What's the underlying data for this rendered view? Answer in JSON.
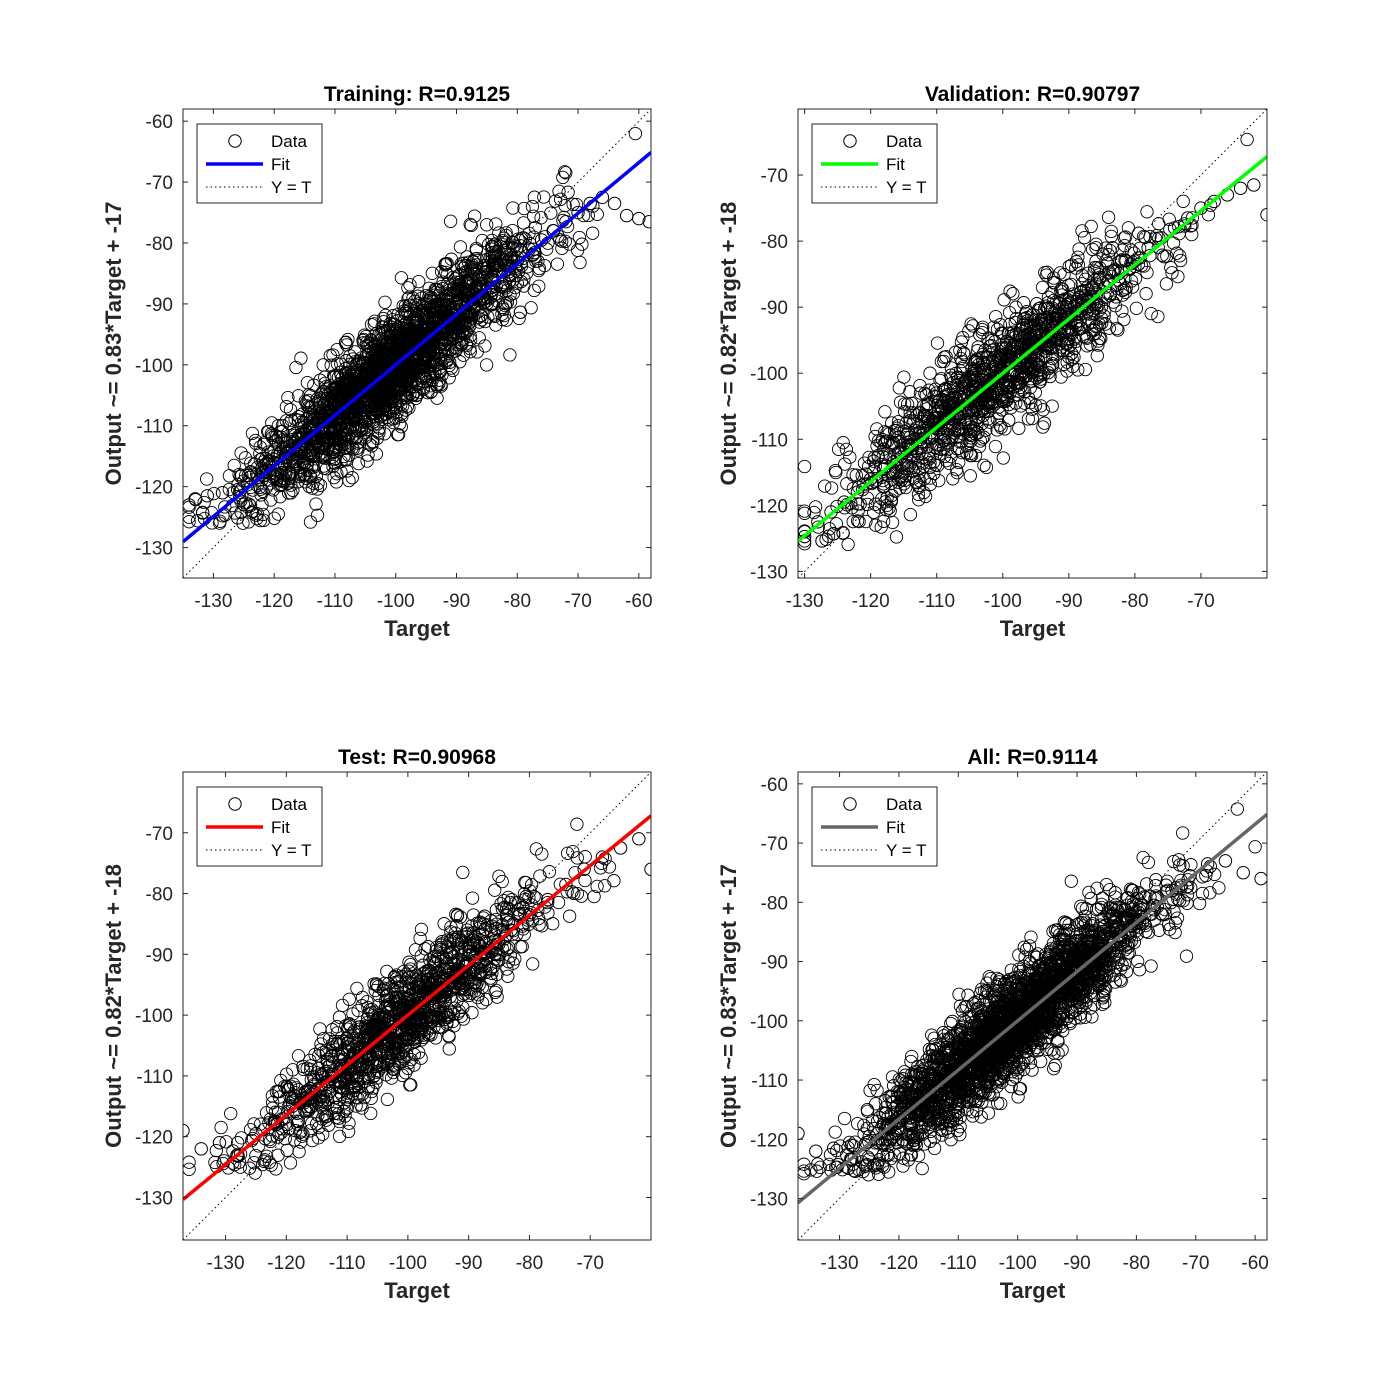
{
  "chart_data": [
    {
      "type": "scatter",
      "title": "Training: R=0.9125",
      "xlabel": "Target",
      "ylabel": "Output ~= 0.83*Target + -17",
      "xlim": [
        -135,
        -58
      ],
      "ylim": [
        -135,
        -58
      ],
      "xticks": [
        -130,
        -120,
        -110,
        -100,
        -90,
        -80,
        -70,
        -60
      ],
      "yticks": [
        -130,
        -120,
        -110,
        -100,
        -90,
        -80,
        -70,
        -60
      ],
      "grid": false,
      "legend_position": "top-left",
      "legend": [
        "Data",
        "Fit",
        "Y = T"
      ],
      "fit_color": "#0000ff",
      "fit": {
        "slope": 0.83,
        "intercept": -17
      },
      "series": [
        {
          "name": "Data",
          "kind": "marker-o",
          "color": "#000000",
          "x": [
            -134.0,
            -133.0,
            -131.0,
            -128.5,
            -126.0,
            -124.0,
            -122.0,
            -120.0,
            -118.0,
            -116.0,
            -114.0,
            -112.0,
            -110.0,
            -108.0,
            -106.0,
            -104.0,
            -102.0,
            -100.0,
            -98.0,
            -96.0,
            -94.0,
            -92.0,
            -90.0,
            -88.0,
            -86.0,
            -84.0,
            -82.0,
            -80.0,
            -78.0,
            -76.0,
            -74.0,
            -72.0,
            -70.0,
            -68.0,
            -66.0,
            -64.0,
            -62.0,
            -60.0,
            -58.3
          ],
          "y": [
            -123.0,
            -122.0,
            -121.5,
            -121.0,
            -120.5,
            -118.5,
            -117.0,
            -115.5,
            -113.5,
            -112.0,
            -110.0,
            -108.5,
            -107.0,
            -105.5,
            -104.0,
            -102.0,
            -100.5,
            -99.0,
            -97.0,
            -95.5,
            -94.0,
            -92.0,
            -90.5,
            -89.0,
            -87.5,
            -86.0,
            -84.5,
            -83.0,
            -81.0,
            -79.5,
            -78.0,
            -76.5,
            -75.0,
            -73.5,
            -72.5,
            -73.5,
            -75.5,
            -76.0,
            -76.5
          ]
        },
        {
          "name": "Fit",
          "kind": "line",
          "x": [
            -135,
            -58
          ],
          "y": [
            -129.05,
            -65.14
          ]
        },
        {
          "name": "Y = T",
          "kind": "dotted-line",
          "x": [
            -135,
            -58
          ],
          "y": [
            -135,
            -58
          ]
        }
      ]
    },
    {
      "type": "scatter",
      "title": "Validation: R=0.90797",
      "xlabel": "Target",
      "ylabel": "Output ~= 0.82*Target + -18",
      "xlim": [
        -131,
        -60
      ],
      "ylim": [
        -131,
        -60
      ],
      "xticks": [
        -130,
        -120,
        -110,
        -100,
        -90,
        -80,
        -70
      ],
      "yticks": [
        -130,
        -120,
        -110,
        -100,
        -90,
        -80,
        -70
      ],
      "grid": false,
      "legend_position": "top-left",
      "legend": [
        "Data",
        "Fit",
        "Y = T"
      ],
      "fit_color": "#00ff00",
      "fit": {
        "slope": 0.82,
        "intercept": -18
      },
      "series": [
        {
          "name": "Data",
          "kind": "marker-o",
          "color": "#000000",
          "x": [
            -130.0,
            -128.0,
            -126.0,
            -124.0,
            -122.0,
            -120.0,
            -118.0,
            -116.0,
            -114.0,
            -112.0,
            -110.0,
            -108.0,
            -106.0,
            -104.0,
            -102.0,
            -100.0,
            -98.0,
            -96.0,
            -94.0,
            -92.0,
            -90.0,
            -88.0,
            -86.0,
            -84.0,
            -82.0,
            -80.0,
            -78.0,
            -76.0,
            -74.0,
            -72.0,
            -70.0,
            -68.0,
            -66.0,
            -64.0,
            -62.0,
            -60.0
          ],
          "y": [
            -124.0,
            -122.5,
            -121.0,
            -119.5,
            -118.0,
            -116.0,
            -114.5,
            -113.0,
            -111.0,
            -109.0,
            -107.5,
            -106.0,
            -104.0,
            -102.5,
            -101.0,
            -99.5,
            -97.5,
            -96.0,
            -94.0,
            -92.5,
            -91.0,
            -89.0,
            -87.5,
            -86.0,
            -84.5,
            -83.0,
            -81.0,
            -79.5,
            -78.0,
            -76.5,
            -75.0,
            -74.0,
            -73.0,
            -72.0,
            -71.5,
            -76.0
          ]
        },
        {
          "name": "Fit",
          "kind": "line",
          "x": [
            -131,
            -60
          ],
          "y": [
            -125.42,
            -67.2
          ]
        },
        {
          "name": "Y = T",
          "kind": "dotted-line",
          "x": [
            -131,
            -60
          ],
          "y": [
            -131,
            -60
          ]
        }
      ]
    },
    {
      "type": "scatter",
      "title": "Test: R=0.90968",
      "xlabel": "Target",
      "ylabel": "Output ~= 0.82*Target + -18",
      "xlim": [
        -137,
        -60
      ],
      "ylim": [
        -137,
        -60
      ],
      "xticks": [
        -130,
        -120,
        -110,
        -100,
        -90,
        -80,
        -70
      ],
      "yticks": [
        -130,
        -120,
        -110,
        -100,
        -90,
        -80,
        -70
      ],
      "grid": false,
      "legend_position": "top-left",
      "legend": [
        "Data",
        "Fit",
        "Y = T"
      ],
      "fit_color": "#ff0000",
      "fit": {
        "slope": 0.82,
        "intercept": -18
      },
      "series": [
        {
          "name": "Data",
          "kind": "marker-o",
          "color": "#000000",
          "x": [
            -137.0,
            -134.0,
            -131.0,
            -128.0,
            -125.0,
            -122.0,
            -119.0,
            -116.0,
            -113.0,
            -110.0,
            -107.0,
            -104.0,
            -101.0,
            -98.0,
            -95.0,
            -92.0,
            -89.0,
            -86.0,
            -83.0,
            -80.0,
            -77.0,
            -74.0,
            -71.0,
            -68.0,
            -65.0,
            -62.0,
            -60.0
          ],
          "y": [
            -119.0,
            -122.0,
            -121.0,
            -121.0,
            -119.5,
            -117.5,
            -115.0,
            -112.5,
            -110.0,
            -108.0,
            -105.5,
            -103.0,
            -100.5,
            -98.5,
            -96.0,
            -93.5,
            -91.0,
            -88.5,
            -86.0,
            -83.5,
            -81.0,
            -78.5,
            -76.0,
            -74.0,
            -72.5,
            -71.0,
            -76.0
          ]
        },
        {
          "name": "Fit",
          "kind": "line",
          "x": [
            -137,
            -60
          ],
          "y": [
            -130.34,
            -67.2
          ]
        },
        {
          "name": "Y = T",
          "kind": "dotted-line",
          "x": [
            -137,
            -60
          ],
          "y": [
            -137,
            -60
          ]
        }
      ]
    },
    {
      "type": "scatter",
      "title": "All: R=0.9114",
      "xlabel": "Target",
      "ylabel": "Output ~= 0.83*Target + -17",
      "xlim": [
        -137,
        -58
      ],
      "ylim": [
        -137,
        -58
      ],
      "xticks": [
        -130,
        -120,
        -110,
        -100,
        -90,
        -80,
        -70,
        -60
      ],
      "yticks": [
        -130,
        -120,
        -110,
        -100,
        -90,
        -80,
        -70,
        -60
      ],
      "grid": false,
      "legend_position": "top-left",
      "legend": [
        "Data",
        "Fit",
        "Y = T"
      ],
      "fit_color": "#666666",
      "fit": {
        "slope": 0.83,
        "intercept": -17
      },
      "series": [
        {
          "name": "Data",
          "kind": "marker-o",
          "color": "#000000",
          "x": [
            -137.0,
            -134.0,
            -131.0,
            -128.0,
            -125.0,
            -122.0,
            -119.0,
            -116.0,
            -113.0,
            -110.0,
            -107.0,
            -104.0,
            -101.0,
            -98.0,
            -95.0,
            -92.0,
            -89.0,
            -86.0,
            -83.0,
            -80.0,
            -77.0,
            -74.0,
            -71.0,
            -68.0,
            -65.0,
            -62.0,
            -59.0
          ],
          "y": [
            -119.0,
            -122.0,
            -121.5,
            -121.0,
            -119.5,
            -117.5,
            -115.5,
            -113.0,
            -110.5,
            -108.0,
            -105.5,
            -103.0,
            -100.5,
            -98.0,
            -95.5,
            -93.0,
            -90.5,
            -88.0,
            -85.5,
            -83.0,
            -80.5,
            -78.0,
            -75.5,
            -73.5,
            -73.0,
            -75.0,
            -76.0
          ]
        },
        {
          "name": "Fit",
          "kind": "line",
          "x": [
            -137,
            -58
          ],
          "y": [
            -130.71,
            -65.14
          ]
        },
        {
          "name": "Y = T",
          "kind": "dotted-line",
          "x": [
            -137,
            -58
          ],
          "y": [
            -137,
            -58
          ]
        }
      ]
    }
  ]
}
